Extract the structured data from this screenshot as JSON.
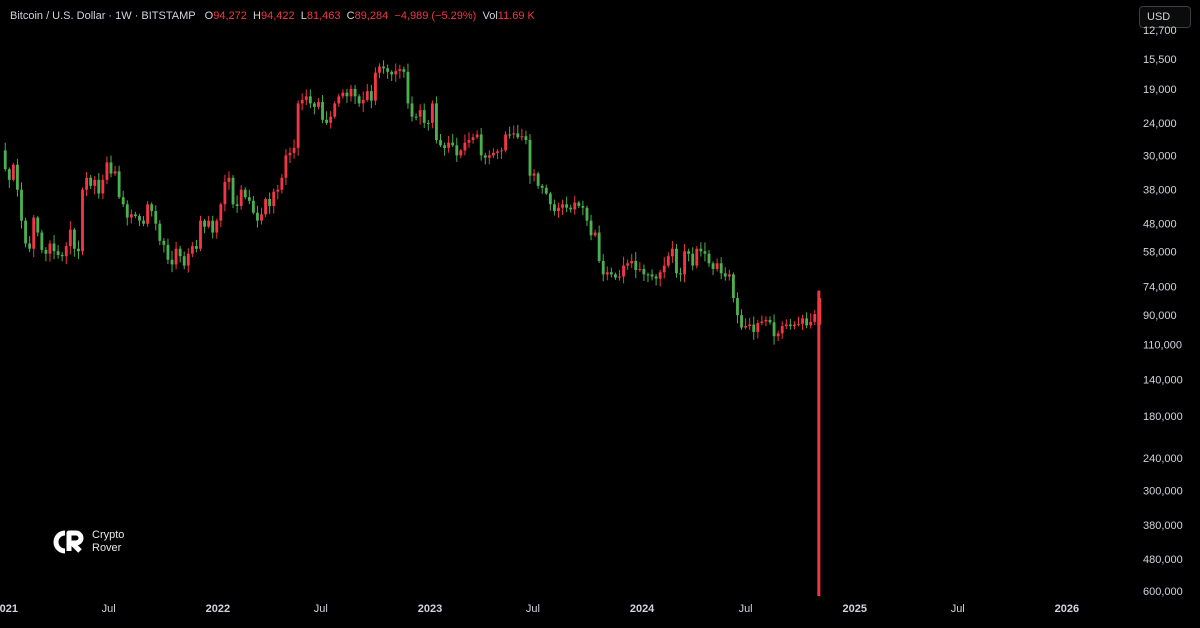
{
  "legend": {
    "symbol": "Bitcoin / U.S. Dollar · 1W · BITSTAMP",
    "open_label": "O",
    "open": "94,272",
    "high_label": "H",
    "high": "94,422",
    "low_label": "L",
    "low": "81,463",
    "close_label": "C",
    "close": "89,284",
    "change": "−4,989 (−5.29%)",
    "vol_label": "Vol",
    "vol": "11.69 K"
  },
  "currency_button": "USD",
  "brand": {
    "line1": "Crypto",
    "line2": "Rover"
  },
  "colors": {
    "up": "#4caf50",
    "down": "#f23645",
    "background": "#000000",
    "text": "#d1d4dc"
  },
  "chart_data": {
    "type": "candlestick",
    "title": "Bitcoin / U.S. Dollar · 1W · BITSTAMP",
    "scale": "log",
    "y_inverted": true,
    "ylim": [
      12000,
      620000
    ],
    "y_ticks": [
      "12,700",
      "15,500",
      "19,000",
      "24,000",
      "30,000",
      "38,000",
      "48,000",
      "58,000",
      "74,000",
      "90,000",
      "110,000",
      "140,000",
      "180,000",
      "240,000",
      "300,000",
      "380,000",
      "480,000",
      "600,000"
    ],
    "x_ticks": [
      {
        "label": "2021",
        "date": "2021-01-01",
        "year": true
      },
      {
        "label": "Jul",
        "date": "2021-07-01",
        "year": false
      },
      {
        "label": "2022",
        "date": "2022-01-01",
        "year": true
      },
      {
        "label": "Jul",
        "date": "2022-07-01",
        "year": false
      },
      {
        "label": "2023",
        "date": "2023-01-01",
        "year": true
      },
      {
        "label": "Jul",
        "date": "2023-07-01",
        "year": false
      },
      {
        "label": "2024",
        "date": "2024-01-01",
        "year": true
      },
      {
        "label": "Jul",
        "date": "2024-07-01",
        "year": false
      },
      {
        "label": "2025",
        "date": "2025-01-01",
        "year": true
      },
      {
        "label": "Jul",
        "date": "2025-07-01",
        "year": false
      },
      {
        "label": "2026",
        "date": "2026-01-01",
        "year": true
      }
    ],
    "xlim": [
      "2020-12-26",
      "2026-04-20"
    ],
    "series": [
      {
        "start": "2020-12-28",
        "interval_days": 7,
        "close": [
          29000,
          33000,
          35500,
          32000,
          38000,
          47000,
          55000,
          57000,
          46000,
          51000,
          57500,
          59000,
          55000,
          58000,
          59500,
          60000,
          56000,
          50000,
          57000,
          58000,
          38000,
          35000,
          37000,
          35500,
          39000,
          35500,
          31500,
          34000,
          33500,
          40000,
          42000,
          46000,
          45000,
          45500,
          47000,
          48000,
          42000,
          44000,
          48000,
          54000,
          55500,
          61500,
          63500,
          57000,
          60000,
          64000,
          59000,
          56000,
          57000,
          47000,
          49000,
          47000,
          51000,
          47000,
          42000,
          36000,
          35000,
          42000,
          42500,
          38000,
          40000,
          41000,
          44500,
          47000,
          45000,
          40500,
          42500,
          38500,
          38000,
          35000,
          30000,
          29500,
          28500,
          21000,
          20500,
          20000,
          21000,
          21500,
          20800,
          23500,
          24000,
          23000,
          21000,
          20000,
          19500,
          20000,
          19000,
          20000,
          21000,
          20500,
          19300,
          20600,
          17000,
          16300,
          16500,
          16900,
          17200,
          16800,
          16600,
          16900,
          21000,
          23000,
          23000,
          22000,
          24000,
          24000,
          21000,
          27000,
          28000,
          28500,
          27500,
          28000,
          30000,
          29000,
          27500,
          27000,
          26500,
          26000,
          30000,
          30500,
          30000,
          29500,
          29200,
          29000,
          26000,
          26000,
          25800,
          26500,
          26300,
          27000,
          34500,
          34000,
          37000,
          37500,
          39000,
          42000,
          44000,
          43000,
          42000,
          43000,
          43500,
          41500,
          42500,
          43000,
          47000,
          52000,
          51000,
          62000,
          68000,
          67000,
          68000,
          69500,
          69000,
          64000,
          63000,
          62000,
          66000,
          65500,
          68000,
          68000,
          69000,
          70000,
          67000,
          64000,
          60000,
          57000,
          67500,
          68000,
          58000,
          59000,
          64000,
          57000,
          58000,
          59000,
          63000,
          65500,
          63000,
          67500,
          69000,
          68000,
          80000,
          90000,
          98000,
          97000,
          96000,
          101000,
          95000,
          94000,
          93000,
          94500,
          104000,
          102000,
          97000,
          96000,
          97000,
          96000,
          95500,
          92000,
          96500,
          94272,
          89284
        ]
      }
    ]
  }
}
